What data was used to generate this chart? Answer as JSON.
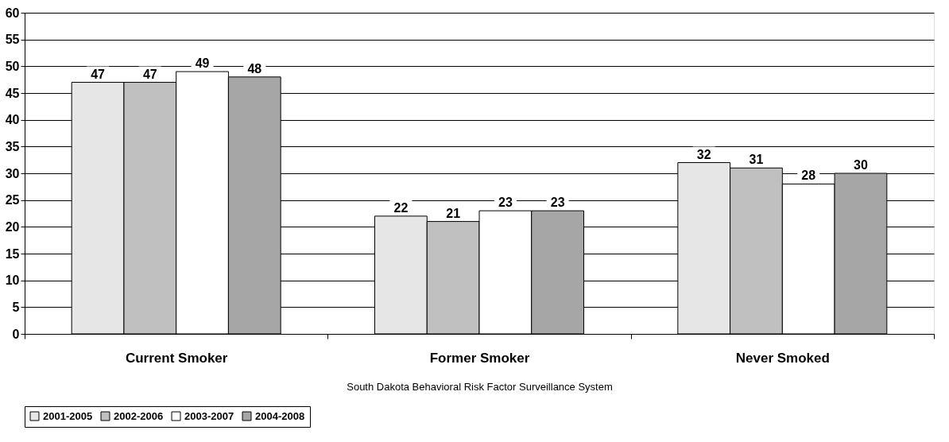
{
  "chart_data": {
    "type": "bar",
    "xlabel": "South Dakota Behavioral Risk Factor Surveillance System",
    "categories": [
      "Current Smoker",
      "Former Smoker",
      "Never Smoked"
    ],
    "series": [
      {
        "name": "2001-2005",
        "color": "#e6e6e6",
        "values": [
          47,
          22,
          32
        ]
      },
      {
        "name": "2002-2006",
        "color": "#c0c0c0",
        "values": [
          47,
          21,
          31
        ]
      },
      {
        "name": "2003-2007",
        "color": "#ffffff",
        "values": [
          49,
          23,
          28
        ]
      },
      {
        "name": "2004-2008",
        "color": "#a6a6a6",
        "values": [
          48,
          23,
          30
        ]
      }
    ],
    "ylim": [
      0,
      60
    ],
    "yticks": [
      0,
      5,
      10,
      15,
      20,
      25,
      30,
      35,
      40,
      45,
      50,
      55,
      60
    ],
    "grid": "y",
    "legend": "bottom",
    "data_labels": true
  }
}
